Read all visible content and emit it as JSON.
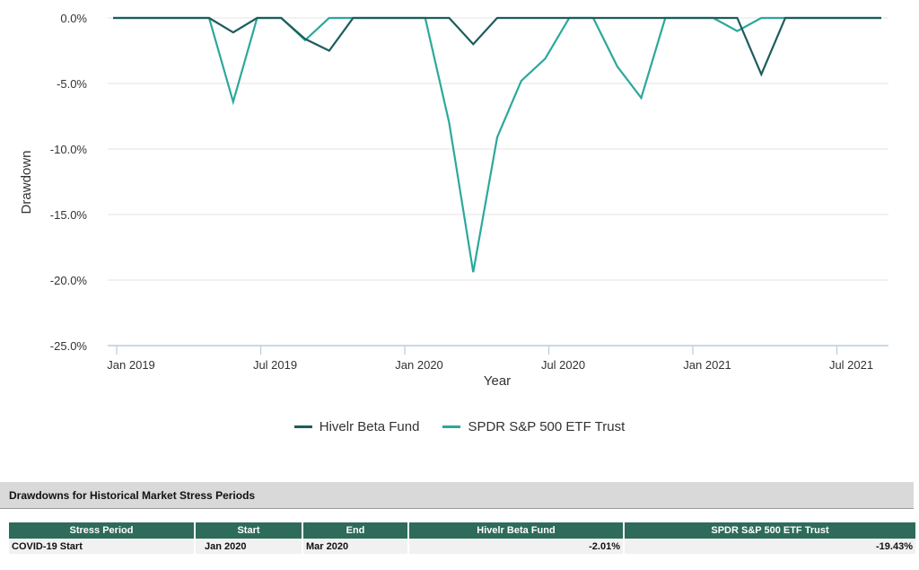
{
  "chart_data": {
    "type": "line",
    "title": "",
    "xlabel": "Year",
    "ylabel": "Drawdown",
    "ylim": [
      -25,
      0
    ],
    "y_ticks": [
      0,
      -5,
      -10,
      -15,
      -20,
      -25
    ],
    "y_tick_labels": [
      "0.0%",
      "-5.0%",
      "-10.0%",
      "-15.0%",
      "-20.0%",
      "-25.0%"
    ],
    "x_tick_labels": [
      "Jan 2019",
      "Jul 2019",
      "Jan 2020",
      "Jul 2020",
      "Jan 2021",
      "Jul 2021"
    ],
    "x": [
      "2018-12",
      "2019-01",
      "2019-02",
      "2019-03",
      "2019-04",
      "2019-05",
      "2019-06",
      "2019-07",
      "2019-08",
      "2019-09",
      "2019-10",
      "2019-11",
      "2019-12",
      "2020-01",
      "2020-02",
      "2020-03",
      "2020-04",
      "2020-05",
      "2020-06",
      "2020-07",
      "2020-08",
      "2020-09",
      "2020-10",
      "2020-11",
      "2020-12",
      "2021-01",
      "2021-02",
      "2021-03",
      "2021-04",
      "2021-05",
      "2021-06",
      "2021-07",
      "2021-08"
    ],
    "series": [
      {
        "name": "Hivelr Beta Fund",
        "color": "#1e5c5c",
        "values": [
          0,
          0,
          0,
          0,
          0,
          -1.1,
          0,
          0,
          -1.6,
          -2.5,
          0,
          0,
          0,
          0,
          0,
          -2.0,
          0,
          0,
          0,
          0,
          0,
          0,
          0,
          0,
          0,
          0,
          0,
          -4.3,
          0,
          0,
          0,
          0,
          0
        ]
      },
      {
        "name": "SPDR S&P 500 ETF Trust",
        "color": "#2ca89c",
        "values": [
          0,
          0,
          0,
          0,
          0,
          -6.4,
          0,
          0,
          -1.7,
          0,
          0,
          0,
          0,
          0,
          -8.0,
          -19.4,
          -9.1,
          -4.8,
          -3.1,
          0,
          0,
          -3.7,
          -6.1,
          0,
          0,
          0,
          -1.0,
          0,
          0,
          0,
          0,
          0,
          0
        ]
      }
    ],
    "grid": true,
    "legend_position": "bottom-center"
  },
  "table": {
    "section_title": "Drawdowns for Historical Market Stress Periods",
    "columns": [
      "Stress Period",
      "Start",
      "End",
      "Hivelr Beta Fund",
      "SPDR S&P 500 ETF Trust"
    ],
    "rows": [
      {
        "period": "COVID-19 Start",
        "start": "Jan 2020",
        "end": "Mar 2020",
        "fund": "-2.01%",
        "spy": "-19.43%"
      }
    ]
  }
}
